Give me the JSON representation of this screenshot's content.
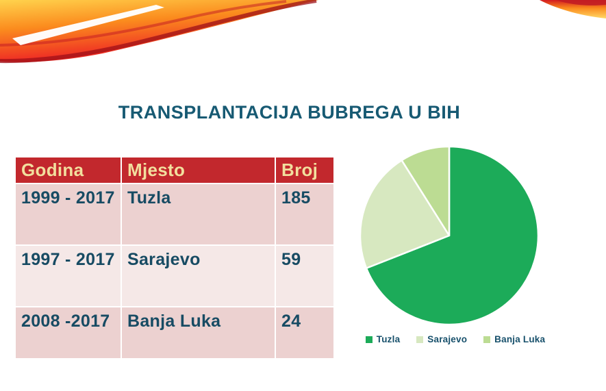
{
  "title": {
    "text": "TRANSPLANTACIJA BUBREGA U BIH",
    "color": "#175A73"
  },
  "table": {
    "columns": [
      "Godina",
      "Mjesto",
      "Broj"
    ],
    "rows": [
      [
        "1999 - 2017",
        "Tuzla",
        "185"
      ],
      [
        "1997 - 2017",
        "Sarajevo",
        "59"
      ],
      [
        "2008 -2017",
        "Banja Luka",
        "24"
      ]
    ],
    "colors": {
      "header_bg": "#C2282D",
      "header_text": "#F2DF9E",
      "row_odd_bg": "#ECD1D0",
      "row_even_bg": "#F5E8E7",
      "body_text": "#174B63",
      "grid": "#FFFFFF"
    }
  },
  "chart_data": {
    "type": "pie",
    "categories": [
      "Tuzla",
      "Sarajevo",
      "Banja Luka"
    ],
    "values": [
      185,
      59,
      24
    ],
    "colors": [
      "#1CAB59",
      "#D7E8C0",
      "#BCDC93"
    ],
    "total": 268,
    "start_angle_deg": 0,
    "direction": "clockwise",
    "slice_border_color": "#FFFFFF",
    "legend_position": "bottom",
    "legend_text_color": "#17506B",
    "title": "",
    "annotations": []
  },
  "decoration": {
    "name": "flame-swoosh",
    "colors": [
      "#FFD34D",
      "#FB8C1E",
      "#EF2E24",
      "#A5121C"
    ]
  }
}
